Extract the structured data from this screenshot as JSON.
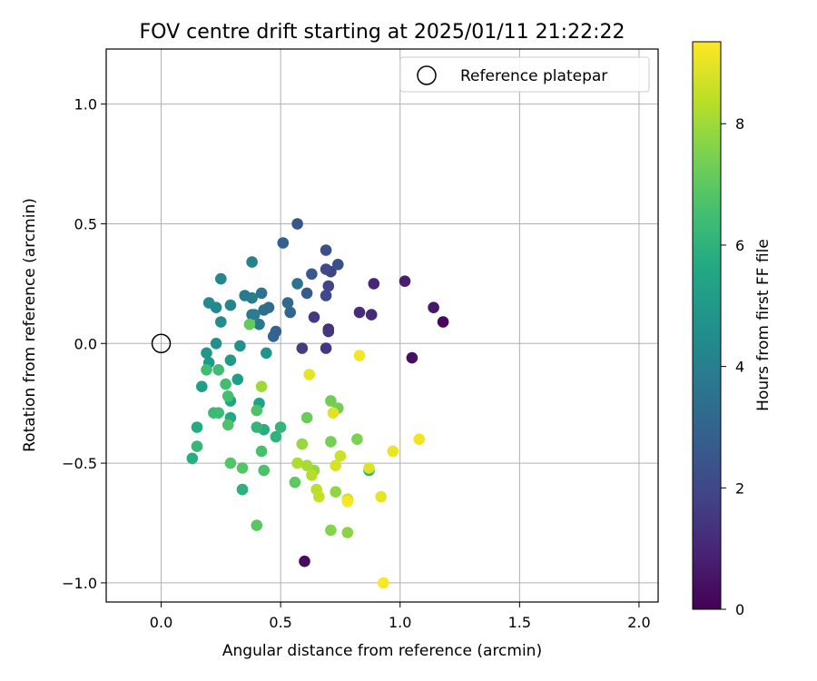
{
  "chart_data": {
    "type": "scatter",
    "title": "FOV centre drift starting at 2025/01/11 21:22:22",
    "xlabel": "Angular distance from reference (arcmin)",
    "ylabel": "Rotation from reference (arcmin)",
    "xlim": [
      -0.23,
      2.08
    ],
    "ylim": [
      -1.08,
      1.23
    ],
    "xticks": [
      0.0,
      0.5,
      1.0,
      1.5,
      2.0
    ],
    "xtick_labels": [
      "0.0",
      "0.5",
      "1.0",
      "1.5",
      "2.0"
    ],
    "yticks": [
      -1.0,
      -0.5,
      0.0,
      0.5,
      1.0
    ],
    "ytick_labels": [
      "−1.0",
      "−0.5",
      "0.0",
      "0.5",
      "1.0"
    ],
    "grid": true,
    "legend": {
      "placement": "top-right",
      "entries": [
        "Reference platepar"
      ]
    },
    "reference_point": {
      "x": 0.0,
      "y": 0.0,
      "name": "Reference platepar",
      "marker": "open-circle"
    },
    "colorbar": {
      "label": "Hours from first FF file",
      "colormap": "viridis",
      "range": [
        0,
        9.35
      ],
      "ticks": [
        0,
        2,
        4,
        6,
        8
      ],
      "tick_labels": [
        "0",
        "2",
        "4",
        "6",
        "8"
      ]
    },
    "points": [
      {
        "x": 1.18,
        "y": 0.09,
        "t": 0.2
      },
      {
        "x": 1.05,
        "y": -0.06,
        "t": 0.4
      },
      {
        "x": 1.14,
        "y": 0.15,
        "t": 0.6
      },
      {
        "x": 1.02,
        "y": 0.26,
        "t": 0.8
      },
      {
        "x": 0.6,
        "y": -0.91,
        "t": 0.3
      },
      {
        "x": 0.89,
        "y": 0.25,
        "t": 1.0
      },
      {
        "x": 0.88,
        "y": 0.12,
        "t": 1.1
      },
      {
        "x": 0.83,
        "y": 0.13,
        "t": 1.2
      },
      {
        "x": 0.7,
        "y": 0.06,
        "t": 1.3
      },
      {
        "x": 0.7,
        "y": 0.05,
        "t": 1.4
      },
      {
        "x": 0.69,
        "y": -0.02,
        "t": 1.5
      },
      {
        "x": 0.64,
        "y": 0.11,
        "t": 1.6
      },
      {
        "x": 0.59,
        "y": -0.02,
        "t": 1.7
      },
      {
        "x": 0.71,
        "y": 0.3,
        "t": 1.8
      },
      {
        "x": 0.7,
        "y": 0.24,
        "t": 1.9
      },
      {
        "x": 0.69,
        "y": 0.2,
        "t": 2.0
      },
      {
        "x": 0.69,
        "y": 0.31,
        "t": 2.1
      },
      {
        "x": 0.69,
        "y": 0.39,
        "t": 2.2
      },
      {
        "x": 0.74,
        "y": 0.33,
        "t": 2.3
      },
      {
        "x": 0.57,
        "y": 0.5,
        "t": 2.5
      },
      {
        "x": 0.63,
        "y": 0.29,
        "t": 2.6
      },
      {
        "x": 0.61,
        "y": 0.21,
        "t": 2.7
      },
      {
        "x": 0.51,
        "y": 0.42,
        "t": 2.8
      },
      {
        "x": 0.48,
        "y": 0.05,
        "t": 2.9
      },
      {
        "x": 0.47,
        "y": 0.03,
        "t": 3.0
      },
      {
        "x": 0.54,
        "y": 0.13,
        "t": 3.1
      },
      {
        "x": 0.53,
        "y": 0.17,
        "t": 3.2
      },
      {
        "x": 0.45,
        "y": 0.15,
        "t": 3.3
      },
      {
        "x": 0.43,
        "y": 0.14,
        "t": 3.4
      },
      {
        "x": 0.42,
        "y": 0.21,
        "t": 3.5
      },
      {
        "x": 0.57,
        "y": 0.25,
        "t": 3.6
      },
      {
        "x": 0.41,
        "y": 0.08,
        "t": 3.7
      },
      {
        "x": 0.38,
        "y": 0.12,
        "t": 3.75
      },
      {
        "x": 0.35,
        "y": 0.2,
        "t": 3.8
      },
      {
        "x": 0.38,
        "y": 0.19,
        "t": 3.9
      },
      {
        "x": 0.39,
        "y": 0.12,
        "t": 4.0
      },
      {
        "x": 0.38,
        "y": 0.34,
        "t": 4.1
      },
      {
        "x": 0.29,
        "y": 0.16,
        "t": 4.2
      },
      {
        "x": 0.25,
        "y": 0.27,
        "t": 4.3
      },
      {
        "x": 0.23,
        "y": 0.15,
        "t": 4.35
      },
      {
        "x": 0.2,
        "y": 0.17,
        "t": 4.4
      },
      {
        "x": 0.25,
        "y": 0.09,
        "t": 4.5
      },
      {
        "x": 0.23,
        "y": 0.0,
        "t": 4.6
      },
      {
        "x": 0.33,
        "y": -0.01,
        "t": 4.7
      },
      {
        "x": 0.44,
        "y": -0.04,
        "t": 4.8
      },
      {
        "x": 0.19,
        "y": -0.04,
        "t": 4.9
      },
      {
        "x": 0.2,
        "y": -0.08,
        "t": 5.0
      },
      {
        "x": 0.29,
        "y": -0.07,
        "t": 5.1
      },
      {
        "x": 0.32,
        "y": -0.15,
        "t": 5.2
      },
      {
        "x": 0.17,
        "y": -0.18,
        "t": 5.3
      },
      {
        "x": 0.41,
        "y": -0.25,
        "t": 5.4
      },
      {
        "x": 0.29,
        "y": -0.24,
        "t": 5.5
      },
      {
        "x": 0.29,
        "y": -0.31,
        "t": 5.6
      },
      {
        "x": 0.15,
        "y": -0.35,
        "t": 5.7
      },
      {
        "x": 0.13,
        "y": -0.48,
        "t": 5.8
      },
      {
        "x": 0.43,
        "y": -0.36,
        "t": 5.85
      },
      {
        "x": 0.34,
        "y": -0.61,
        "t": 5.9
      },
      {
        "x": 0.87,
        "y": -0.53,
        "t": 5.95
      },
      {
        "x": 0.48,
        "y": -0.39,
        "t": 6.0
      },
      {
        "x": 0.4,
        "y": -0.35,
        "t": 6.1
      },
      {
        "x": 0.5,
        "y": -0.35,
        "t": 6.15
      },
      {
        "x": 0.15,
        "y": -0.43,
        "t": 6.2
      },
      {
        "x": 0.22,
        "y": -0.29,
        "t": 6.3
      },
      {
        "x": 0.24,
        "y": -0.29,
        "t": 6.35
      },
      {
        "x": 0.24,
        "y": -0.11,
        "t": 6.4
      },
      {
        "x": 0.19,
        "y": -0.11,
        "t": 6.45
      },
      {
        "x": 0.27,
        "y": -0.17,
        "t": 6.5
      },
      {
        "x": 0.28,
        "y": -0.22,
        "t": 6.55
      },
      {
        "x": 0.42,
        "y": -0.45,
        "t": 6.6
      },
      {
        "x": 0.43,
        "y": -0.53,
        "t": 6.65
      },
      {
        "x": 0.4,
        "y": -0.28,
        "t": 6.7
      },
      {
        "x": 0.28,
        "y": -0.34,
        "t": 6.75
      },
      {
        "x": 0.29,
        "y": -0.5,
        "t": 6.8
      },
      {
        "x": 0.34,
        "y": -0.52,
        "t": 6.85
      },
      {
        "x": 0.4,
        "y": -0.76,
        "t": 6.9
      },
      {
        "x": 0.56,
        "y": -0.58,
        "t": 7.0
      },
      {
        "x": 0.37,
        "y": 0.08,
        "t": 7.1
      },
      {
        "x": 0.61,
        "y": -0.31,
        "t": 7.2
      },
      {
        "x": 0.71,
        "y": -0.24,
        "t": 7.3
      },
      {
        "x": 0.74,
        "y": -0.27,
        "t": 7.35
      },
      {
        "x": 0.71,
        "y": -0.41,
        "t": 7.4
      },
      {
        "x": 0.82,
        "y": -0.4,
        "t": 7.5
      },
      {
        "x": 0.71,
        "y": -0.78,
        "t": 7.6
      },
      {
        "x": 0.78,
        "y": -0.79,
        "t": 7.7
      },
      {
        "x": 0.73,
        "y": -0.62,
        "t": 7.8
      },
      {
        "x": 0.64,
        "y": -0.53,
        "t": 7.85
      },
      {
        "x": 0.59,
        "y": -0.42,
        "t": 7.9
      },
      {
        "x": 0.42,
        "y": -0.18,
        "t": 8.0
      },
      {
        "x": 0.61,
        "y": -0.51,
        "t": 8.1
      },
      {
        "x": 0.57,
        "y": -0.5,
        "t": 8.2
      },
      {
        "x": 0.63,
        "y": -0.55,
        "t": 8.3
      },
      {
        "x": 0.65,
        "y": -0.61,
        "t": 8.4
      },
      {
        "x": 0.66,
        "y": -0.64,
        "t": 8.5
      },
      {
        "x": 0.75,
        "y": -0.47,
        "t": 8.6
      },
      {
        "x": 0.78,
        "y": -0.65,
        "t": 8.7
      },
      {
        "x": 0.73,
        "y": -0.51,
        "t": 8.8
      },
      {
        "x": 0.87,
        "y": -0.52,
        "t": 8.85
      },
      {
        "x": 0.72,
        "y": -0.29,
        "t": 8.9
      },
      {
        "x": 0.62,
        "y": -0.13,
        "t": 9.0
      },
      {
        "x": 0.92,
        "y": -0.64,
        "t": 9.05
      },
      {
        "x": 0.97,
        "y": -0.45,
        "t": 9.1
      },
      {
        "x": 1.08,
        "y": -0.4,
        "t": 9.15
      },
      {
        "x": 0.83,
        "y": -0.05,
        "t": 9.2
      },
      {
        "x": 0.78,
        "y": -0.66,
        "t": 9.25
      },
      {
        "x": 0.93,
        "y": -1.0,
        "t": 9.3
      }
    ]
  }
}
